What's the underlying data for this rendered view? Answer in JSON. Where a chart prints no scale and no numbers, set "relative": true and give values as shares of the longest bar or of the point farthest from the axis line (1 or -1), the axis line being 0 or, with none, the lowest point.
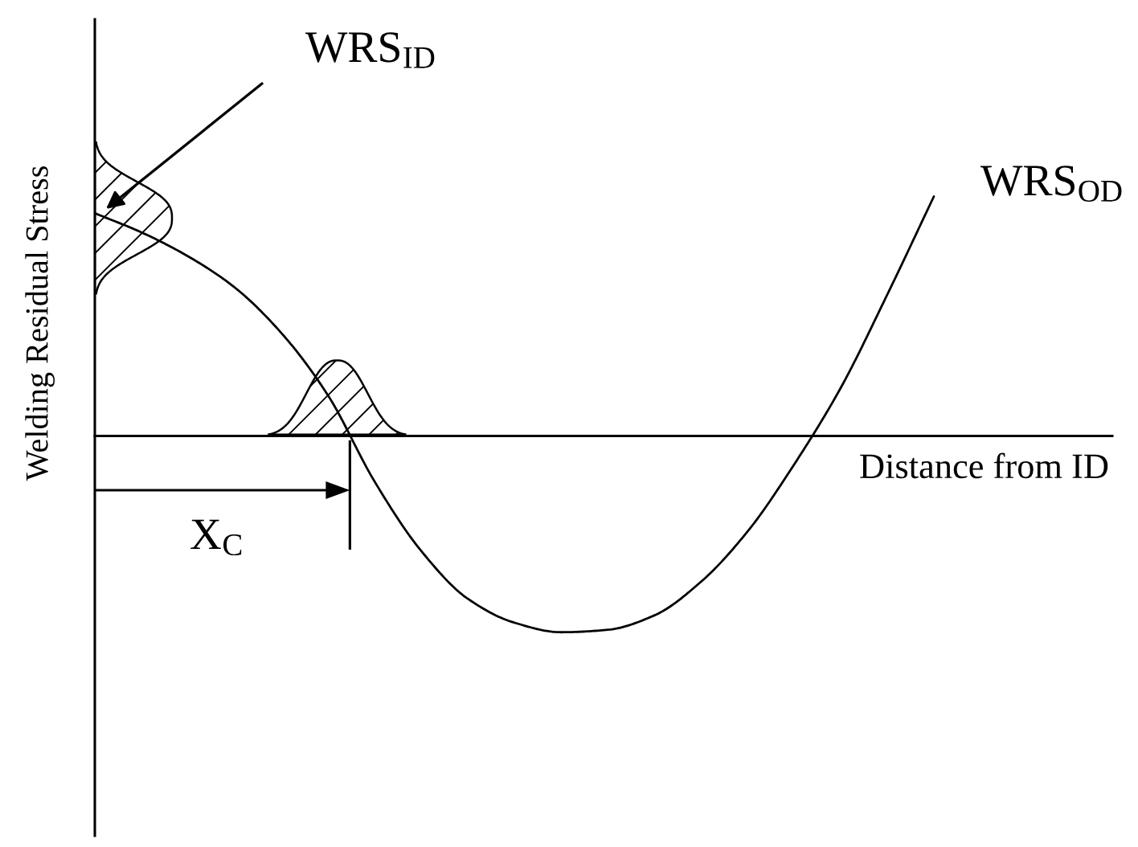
{
  "chart_data": {
    "type": "line",
    "relative": true,
    "xlabel": "Distance from ID",
    "ylabel": "Welding Residual Stress",
    "annotations": [
      "WRS$_{ID}$",
      "WRS$_{OD}$",
      "X$_{C}$"
    ],
    "categories": [
      null,
      null,
      null,
      null,
      null,
      null,
      null,
      null,
      null,
      null,
      null,
      null,
      null,
      null,
      null,
      null,
      null,
      null,
      null
    ],
    "values": [
      0.93,
      0.85,
      0.75,
      0.62,
      0.43,
      0.17,
      -0.19,
      -0.48,
      -0.68,
      -0.78,
      -0.82,
      -0.81,
      -0.75,
      -0.61,
      -0.4,
      -0.12,
      0.2,
      0.59,
      1.0
    ],
    "color": "#000000"
  }
}
